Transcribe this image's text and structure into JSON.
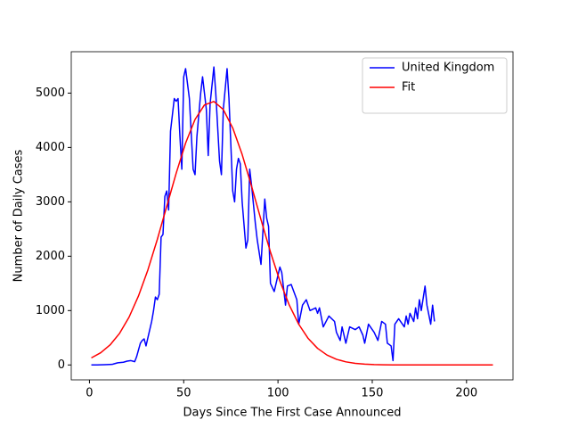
{
  "chart_data": {
    "type": "line",
    "xlabel": "Days Since The First Case Announced",
    "ylabel": "Number of Daily Cases",
    "xlim": [
      -9.65,
      224.65
    ],
    "ylim": [
      -274,
      5761
    ],
    "xticks": [
      0,
      50,
      100,
      150,
      200
    ],
    "yticks": [
      0,
      1000,
      2000,
      3000,
      4000,
      5000
    ],
    "grid": false,
    "legend": "upper right",
    "series": [
      {
        "name": "United Kingdom",
        "color": "#0000ff",
        "x": [
          1,
          4,
          8,
          12,
          15,
          18,
          20,
          22,
          24,
          25,
          27,
          28,
          29,
          30,
          31,
          33,
          34,
          35,
          36,
          37,
          38,
          39,
          40,
          41,
          42,
          43,
          44,
          45,
          46,
          47,
          48,
          49,
          50,
          51,
          53,
          55,
          56,
          57,
          59,
          60,
          62,
          63,
          64,
          66,
          67,
          69,
          70,
          71,
          73,
          74,
          76,
          77,
          78,
          79,
          80,
          81,
          83,
          84,
          85,
          86,
          88,
          89,
          91,
          93,
          94,
          95,
          96,
          98,
          100,
          101,
          102,
          104,
          105,
          107,
          110,
          111,
          113,
          115,
          117,
          120,
          121,
          122,
          124,
          127,
          130,
          131,
          133,
          134,
          136,
          138,
          141,
          143,
          145,
          146,
          148,
          151,
          153,
          155,
          157,
          158,
          160,
          161,
          162,
          164,
          167,
          168,
          169,
          170,
          172,
          173,
          174,
          175,
          176,
          178,
          179,
          181,
          182,
          183
        ],
        "values": [
          0,
          0,
          5,
          10,
          40,
          50,
          70,
          80,
          60,
          150,
          400,
          450,
          480,
          350,
          500,
          800,
          1000,
          1250,
          1200,
          1300,
          2350,
          2400,
          3100,
          3200,
          2850,
          4300,
          4600,
          4900,
          4850,
          4900,
          4200,
          3600,
          5300,
          5450,
          4900,
          3600,
          3500,
          4200,
          5000,
          5300,
          4700,
          3850,
          4800,
          5480,
          5000,
          3750,
          3500,
          4700,
          5450,
          4900,
          3200,
          3000,
          3600,
          3800,
          3700,
          3000,
          2150,
          2300,
          3600,
          3300,
          2600,
          2300,
          1850,
          3050,
          2700,
          2550,
          1500,
          1350,
          1650,
          1800,
          1700,
          1100,
          1450,
          1480,
          1200,
          750,
          1100,
          1200,
          1000,
          1050,
          950,
          1050,
          700,
          900,
          800,
          600,
          450,
          700,
          400,
          700,
          650,
          700,
          550,
          400,
          750,
          600,
          450,
          800,
          750,
          400,
          350,
          80,
          750,
          850,
          700,
          900,
          750,
          950,
          800,
          1050,
          850,
          1200,
          1000,
          1450,
          1100,
          750,
          1100,
          800
        ]
      },
      {
        "name": "Fit",
        "color": "#ff0000",
        "x": [
          1,
          6,
          11,
          16,
          21,
          26,
          31,
          36,
          41,
          46,
          51,
          56,
          61,
          66,
          71,
          76,
          81,
          86,
          91,
          96,
          101,
          106,
          111,
          116,
          121,
          126,
          131,
          136,
          141,
          146,
          151,
          156,
          161,
          166,
          171,
          176,
          181,
          186,
          191,
          196,
          201,
          206,
          211,
          214
        ],
        "values": [
          130,
          225,
          370,
          582,
          878,
          1268,
          1748,
          2309,
          2918,
          3526,
          4080,
          4515,
          4782,
          4846,
          4698,
          4358,
          3870,
          3286,
          2671,
          2077,
          1545,
          1100,
          749,
          488,
          305,
          182,
          104,
          57,
          30,
          15,
          7,
          3,
          1,
          0,
          0,
          0,
          0,
          0,
          0,
          0,
          0,
          0,
          0,
          0
        ]
      }
    ]
  }
}
